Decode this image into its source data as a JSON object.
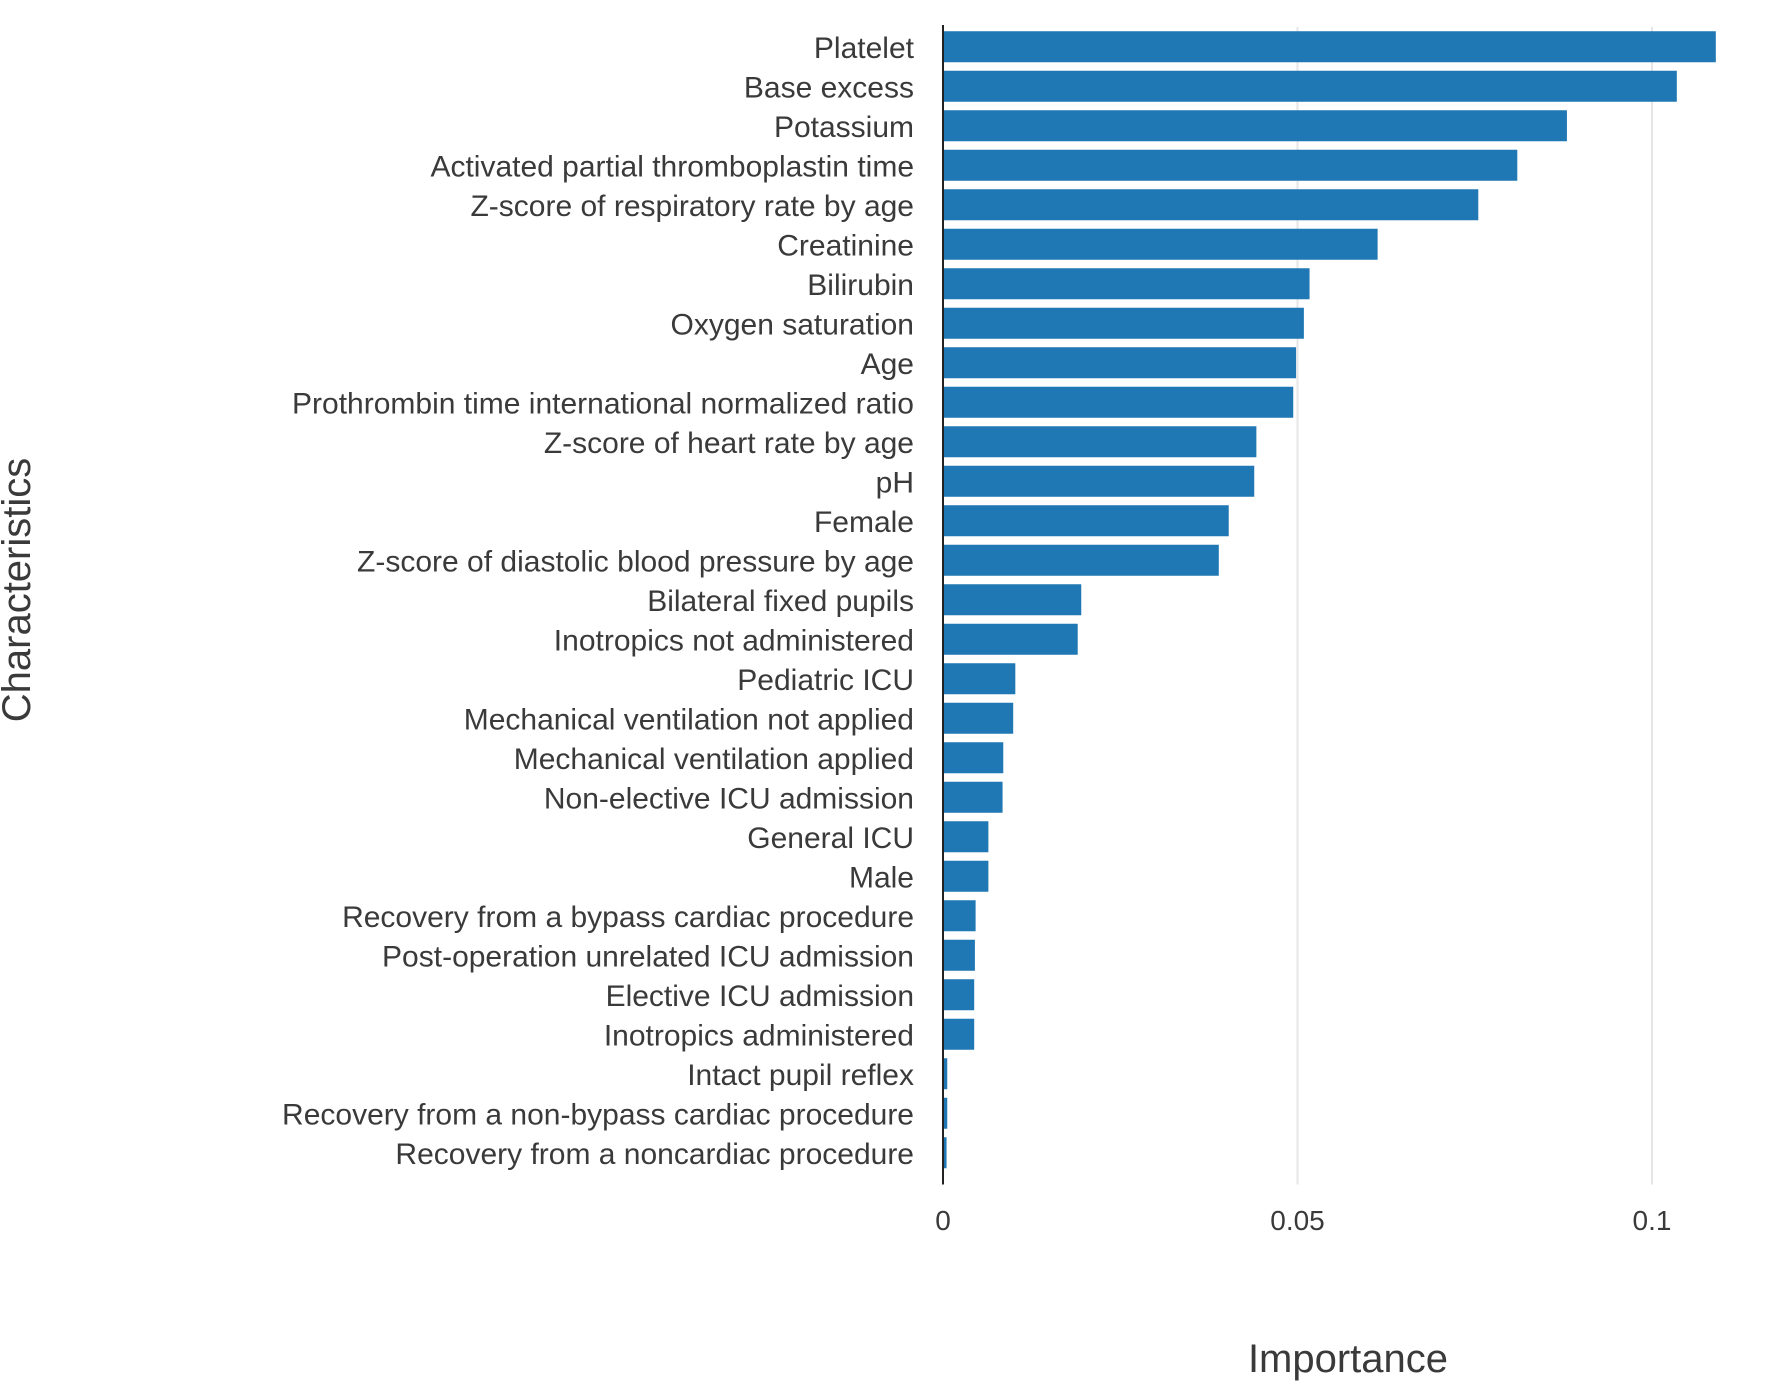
{
  "chart_data": {
    "type": "bar",
    "orientation": "horizontal",
    "title": "",
    "xlabel": "Importance",
    "ylabel": "Characteristics",
    "xlim": [
      0,
      0.11
    ],
    "xticks": [
      {
        "value": 0,
        "label": "0"
      },
      {
        "value": 0.05,
        "label": "0.05"
      },
      {
        "value": 0.1,
        "label": "0.1"
      }
    ],
    "grid": "vertical",
    "bar_color": "#1f77b4",
    "categories": [
      "Platelet",
      "Base excess",
      "Potassium",
      "Activated partial thromboplastin time",
      "Z-score of respiratory rate by age",
      "Creatinine",
      "Bilirubin",
      "Oxygen saturation",
      "Age",
      "Prothrombin time international normalized ratio",
      "Z-score of heart rate by age",
      "pH",
      "Female",
      "Z-score of diastolic blood pressure by age",
      "Bilateral fixed pupils",
      "Inotropics not administered",
      "Pediatric ICU",
      "Mechanical ventilation not applied",
      "Mechanical ventilation applied",
      "Non-elective ICU admission",
      "General ICU",
      "Male",
      "Recovery from a bypass cardiac procedure",
      "Post-operation unrelated ICU admission",
      "Elective ICU admission",
      "Inotropics administered",
      "Intact pupil reflex",
      "Recovery from a non-bypass cardiac procedure",
      "Recovery from a noncardiac procedure"
    ],
    "values": [
      0.109,
      0.1035,
      0.088,
      0.081,
      0.0755,
      0.0613,
      0.0517,
      0.0509,
      0.0498,
      0.0494,
      0.0442,
      0.0439,
      0.0403,
      0.0389,
      0.0195,
      0.019,
      0.0102,
      0.0099,
      0.0085,
      0.0084,
      0.0064,
      0.0064,
      0.0046,
      0.0045,
      0.0044,
      0.0044,
      0.0006,
      0.0006,
      0.0005
    ]
  }
}
